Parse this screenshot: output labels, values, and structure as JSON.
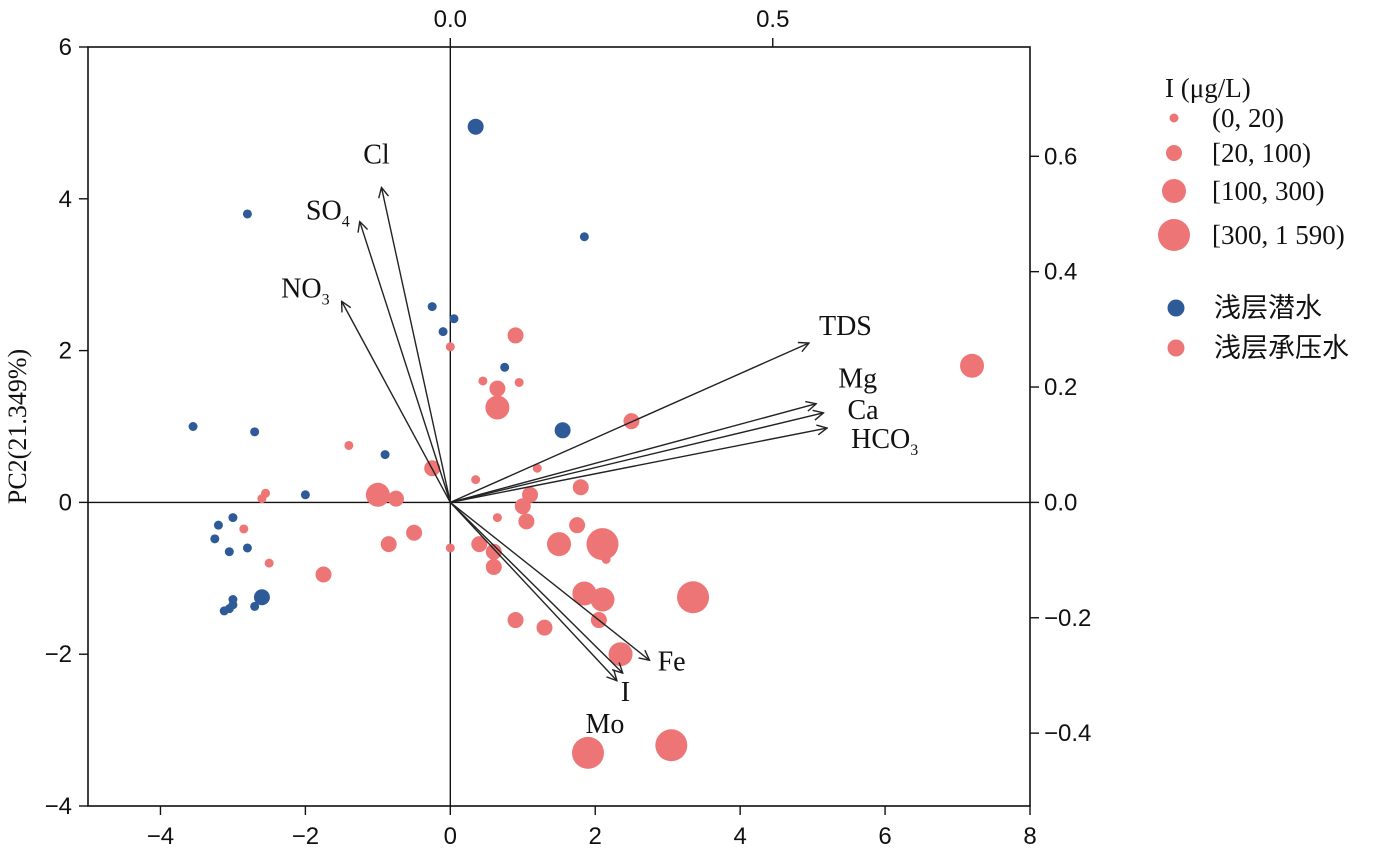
{
  "chart_data": {
    "type": "scatter",
    "title": "",
    "xlabel": "",
    "ylabel": "PC2(21.349%)",
    "xlim": [
      -5,
      8
    ],
    "ylim": [
      -4,
      6
    ],
    "x_ticks": [
      -4,
      -2,
      0,
      2,
      4,
      6,
      8
    ],
    "x_tick_labels": [
      "−4",
      "−2",
      "0",
      "2",
      "4",
      "6",
      "8"
    ],
    "y_ticks": [
      -4,
      -2,
      0,
      2,
      4,
      6
    ],
    "y_tick_labels": [
      "−4",
      "−2",
      "0",
      "2",
      "4",
      "6"
    ],
    "top_axis": {
      "scale_factor": 8.9,
      "ticks": [
        0.0,
        0.5
      ],
      "tick_labels": [
        "0.0",
        "0.5"
      ]
    },
    "right_axis": {
      "scale_factor": 7.6,
      "ticks": [
        0.6,
        0.4,
        0.2,
        0.0,
        -0.2,
        -0.4
      ],
      "tick_labels": [
        "0.6",
        "0.4",
        "0.2",
        "0.0",
        "−0.2",
        "−0.4"
      ]
    },
    "colors": {
      "shallow_unconfined": "#2f5a98",
      "shallow_confined": "#ee7575",
      "axis": "#111111",
      "vector": "#222222"
    },
    "legend": {
      "size_title": "I (μg/L)",
      "size_classes": [
        {
          "label": "(0, 20)",
          "size_class": 1
        },
        {
          "label": "[20, 100)",
          "size_class": 2
        },
        {
          "label": "[100, 300)",
          "size_class": 3
        },
        {
          "label": "[300, 1 590)",
          "size_class": 4
        }
      ],
      "groups": [
        {
          "label": "浅层潜水",
          "color_key": "shallow_unconfined"
        },
        {
          "label": "浅层承压水",
          "color_key": "shallow_confined"
        }
      ]
    },
    "vectors": [
      {
        "label": "Cl",
        "sub": "",
        "x": -0.95,
        "y": 4.15
      },
      {
        "label": "SO",
        "sub": "4",
        "x": -1.25,
        "y": 3.7
      },
      {
        "label": "NO",
        "sub": "3",
        "x": -1.5,
        "y": 2.65
      },
      {
        "label": "TDS",
        "sub": "",
        "x": 4.95,
        "y": 2.1
      },
      {
        "label": "Mg",
        "sub": "",
        "x": 5.05,
        "y": 1.3
      },
      {
        "label": "Ca",
        "sub": "",
        "x": 5.15,
        "y": 1.18
      },
      {
        "label": "HCO",
        "sub": "3",
        "x": 5.2,
        "y": 0.98
      },
      {
        "label": "Fe",
        "sub": "",
        "x": 2.75,
        "y": -2.08
      },
      {
        "label": "I",
        "sub": "",
        "x": 2.38,
        "y": -2.25
      },
      {
        "label": "Mo",
        "sub": "",
        "x": 2.3,
        "y": -2.35
      }
    ],
    "series": [
      {
        "name": "浅层潜水",
        "color_key": "shallow_unconfined",
        "points": [
          {
            "x": 0.35,
            "y": 4.95,
            "s": 2
          },
          {
            "x": -2.8,
            "y": 3.8,
            "s": 1
          },
          {
            "x": 1.85,
            "y": 3.5,
            "s": 1
          },
          {
            "x": -0.25,
            "y": 2.58,
            "s": 1
          },
          {
            "x": 0.05,
            "y": 2.42,
            "s": 1
          },
          {
            "x": -0.1,
            "y": 2.25,
            "s": 1
          },
          {
            "x": 0.75,
            "y": 1.78,
            "s": 1
          },
          {
            "x": 1.55,
            "y": 0.95,
            "s": 2
          },
          {
            "x": -3.55,
            "y": 1.0,
            "s": 1
          },
          {
            "x": -2.7,
            "y": 0.93,
            "s": 1
          },
          {
            "x": -0.9,
            "y": 0.63,
            "s": 1
          },
          {
            "x": -2.0,
            "y": 0.1,
            "s": 1
          },
          {
            "x": -3.0,
            "y": -0.2,
            "s": 1
          },
          {
            "x": -3.2,
            "y": -0.3,
            "s": 1
          },
          {
            "x": -3.25,
            "y": -0.48,
            "s": 1
          },
          {
            "x": -2.8,
            "y": -0.6,
            "s": 1
          },
          {
            "x": -3.05,
            "y": -0.65,
            "s": 1
          },
          {
            "x": -2.6,
            "y": -1.25,
            "s": 2
          },
          {
            "x": -3.0,
            "y": -1.28,
            "s": 1
          },
          {
            "x": -3.0,
            "y": -1.35,
            "s": 1
          },
          {
            "x": -2.7,
            "y": -1.37,
            "s": 1
          },
          {
            "x": -3.05,
            "y": -1.4,
            "s": 1
          },
          {
            "x": -3.12,
            "y": -1.43,
            "s": 1
          }
        ]
      },
      {
        "name": "浅层承压水",
        "color_key": "shallow_confined",
        "points": [
          {
            "x": 7.2,
            "y": 1.8,
            "s": 3
          },
          {
            "x": 0.9,
            "y": 2.2,
            "s": 2
          },
          {
            "x": 0.0,
            "y": 2.05,
            "s": 1
          },
          {
            "x": 0.45,
            "y": 1.6,
            "s": 1
          },
          {
            "x": 0.95,
            "y": 1.58,
            "s": 1
          },
          {
            "x": 0.65,
            "y": 1.5,
            "s": 2
          },
          {
            "x": 0.65,
            "y": 1.25,
            "s": 3
          },
          {
            "x": 2.5,
            "y": 1.07,
            "s": 2
          },
          {
            "x": -1.4,
            "y": 0.75,
            "s": 1
          },
          {
            "x": 1.2,
            "y": 0.45,
            "s": 1
          },
          {
            "x": -0.25,
            "y": 0.45,
            "s": 2
          },
          {
            "x": 0.35,
            "y": 0.3,
            "s": 1
          },
          {
            "x": 1.8,
            "y": 0.2,
            "s": 2
          },
          {
            "x": 1.1,
            "y": 0.1,
            "s": 2
          },
          {
            "x": -2.55,
            "y": 0.12,
            "s": 1
          },
          {
            "x": -2.6,
            "y": 0.05,
            "s": 1
          },
          {
            "x": -1.0,
            "y": 0.1,
            "s": 3
          },
          {
            "x": -0.75,
            "y": 0.05,
            "s": 2
          },
          {
            "x": 1.0,
            "y": -0.05,
            "s": 2
          },
          {
            "x": 0.65,
            "y": -0.2,
            "s": 1
          },
          {
            "x": 1.05,
            "y": -0.25,
            "s": 2
          },
          {
            "x": 1.75,
            "y": -0.3,
            "s": 2
          },
          {
            "x": -0.5,
            "y": -0.4,
            "s": 2
          },
          {
            "x": 2.1,
            "y": -0.55,
            "s": 4
          },
          {
            "x": 1.5,
            "y": -0.55,
            "s": 3
          },
          {
            "x": -0.85,
            "y": -0.55,
            "s": 2
          },
          {
            "x": 0.4,
            "y": -0.55,
            "s": 2
          },
          {
            "x": 0.0,
            "y": -0.6,
            "s": 1
          },
          {
            "x": 0.6,
            "y": -0.65,
            "s": 2
          },
          {
            "x": 2.15,
            "y": -0.75,
            "s": 1
          },
          {
            "x": 0.6,
            "y": -0.85,
            "s": 2
          },
          {
            "x": -2.5,
            "y": -0.8,
            "s": 1
          },
          {
            "x": -2.85,
            "y": -0.35,
            "s": 1
          },
          {
            "x": -1.75,
            "y": -0.95,
            "s": 2
          },
          {
            "x": 3.35,
            "y": -1.25,
            "s": 4
          },
          {
            "x": 1.85,
            "y": -1.2,
            "s": 3
          },
          {
            "x": 2.1,
            "y": -1.28,
            "s": 3
          },
          {
            "x": 0.9,
            "y": -1.55,
            "s": 2
          },
          {
            "x": 1.3,
            "y": -1.65,
            "s": 2
          },
          {
            "x": 2.05,
            "y": -1.55,
            "s": 2
          },
          {
            "x": 2.35,
            "y": -2.0,
            "s": 3
          },
          {
            "x": 3.05,
            "y": -3.2,
            "s": 4
          },
          {
            "x": 1.9,
            "y": -3.3,
            "s": 4
          }
        ]
      }
    ]
  }
}
